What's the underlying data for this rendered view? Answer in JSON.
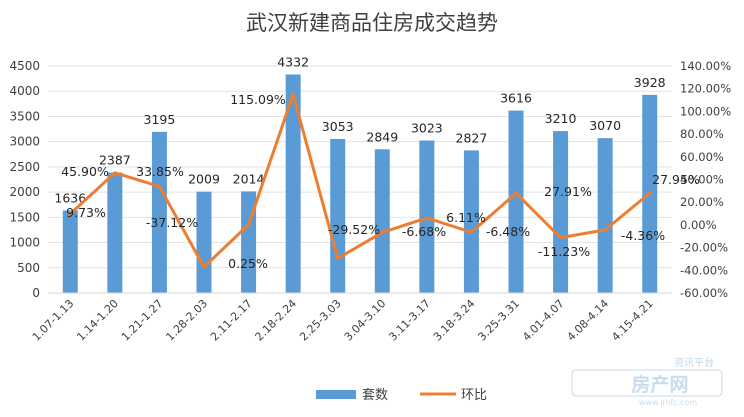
{
  "chart_data": {
    "type": "bar",
    "title": "武汉新建商品住房成交趋势",
    "categories": [
      "1.07-1.13",
      "1.14-1.20",
      "1.21-1.27",
      "1.28-2.03",
      "2.11-2.17",
      "2.18-2.24",
      "2.25-3.03",
      "3.04-3.10",
      "3.11-3.17",
      "3.18-3.24",
      "3.25-3.31",
      "4.01-4.07",
      "4.08-4.14",
      "4.15-4.21"
    ],
    "series": [
      {
        "name": "套数",
        "type": "bar",
        "axis": "left",
        "color": "#5B9BD5",
        "values": [
          1636,
          2387,
          3195,
          2009,
          2014,
          4332,
          3053,
          2849,
          3023,
          2827,
          3616,
          3210,
          3070,
          3928
        ],
        "labels": [
          "1636",
          "2387",
          "3195",
          "2009",
          "2014",
          "4332",
          "3053",
          "2849",
          "3023",
          "2827",
          "3616",
          "3210",
          "3070",
          "3928"
        ]
      },
      {
        "name": "环比",
        "type": "line",
        "axis": "right",
        "color": "#ED7D31",
        "values": [
          9.73,
          45.9,
          33.85,
          -37.12,
          0.25,
          115.09,
          -29.52,
          -6.68,
          6.11,
          -6.48,
          27.91,
          -11.23,
          -4.36,
          27.95
        ],
        "labels": [
          "9.73%",
          "45.90%",
          "33.85%",
          "-37.12%",
          "0.25%",
          "115.09%",
          "-29.52%",
          "-6.68%",
          "6.11%",
          "-6.48%",
          "27.91%",
          "-11.23%",
          "-4.36%",
          "27.95%"
        ]
      }
    ],
    "y_left": {
      "min": 0,
      "max": 4500,
      "ticks": [
        "0",
        "500",
        "1000",
        "1500",
        "2000",
        "2500",
        "3000",
        "3500",
        "4000",
        "4500"
      ]
    },
    "y_right": {
      "min": -60,
      "max": 140,
      "ticks": [
        "-60.00%",
        "-40.00%",
        "-20.00%",
        "0.00%",
        "20.00%",
        "40.00%",
        "60.00%",
        "80.00%",
        "100.00%",
        "120.00%",
        "140.00%"
      ]
    },
    "grid": true,
    "legend_position": "bottom"
  },
  "watermark": {
    "brand": "房产网",
    "tag": "资讯平台",
    "url": "www.lmfc.com"
  }
}
